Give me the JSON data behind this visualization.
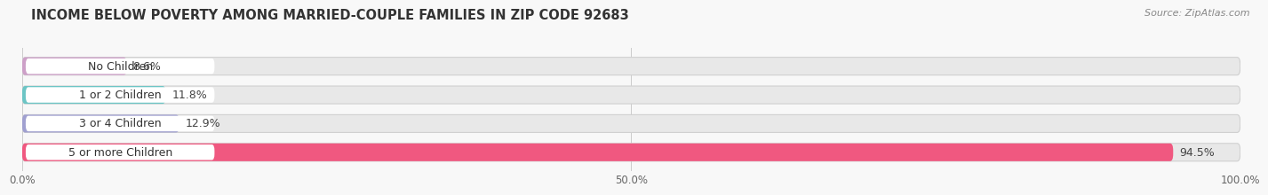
{
  "title": "INCOME BELOW POVERTY AMONG MARRIED-COUPLE FAMILIES IN ZIP CODE 92683",
  "source": "Source: ZipAtlas.com",
  "categories": [
    "No Children",
    "1 or 2 Children",
    "3 or 4 Children",
    "5 or more Children"
  ],
  "values": [
    8.6,
    11.8,
    12.9,
    94.5
  ],
  "bar_colors": [
    "#cda0c8",
    "#6cc5c5",
    "#a0a0d0",
    "#f05880"
  ],
  "bar_bg_color": "#e8e8e8",
  "xlim": [
    0,
    100
  ],
  "xticks": [
    0.0,
    50.0,
    100.0
  ],
  "xtick_labels": [
    "0.0%",
    "50.0%",
    "100.0%"
  ],
  "background_color": "#f8f8f8",
  "title_fontsize": 10.5,
  "bar_height": 0.62,
  "value_fontsize": 9,
  "label_fontsize": 9
}
